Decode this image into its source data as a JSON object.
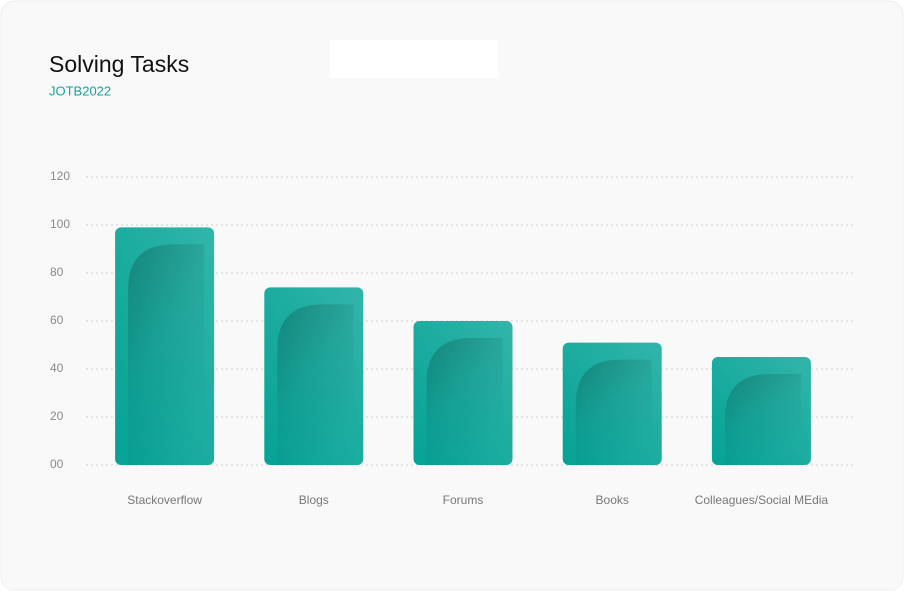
{
  "chart_data": {
    "type": "bar",
    "title": "Solving Tasks",
    "subtitle": "JOTB2022",
    "categories": [
      "Stackoverflow",
      "Blogs",
      "Forums",
      "Books",
      "Colleagues/Social MEdia"
    ],
    "values": [
      99,
      74,
      60,
      51,
      45
    ],
    "color": "#1aab9f",
    "ylim": [
      0,
      120
    ],
    "yticks": [
      {
        "value": 0,
        "label": "00"
      },
      20,
      40,
      60,
      80,
      100,
      120
    ],
    "grid": true
  }
}
